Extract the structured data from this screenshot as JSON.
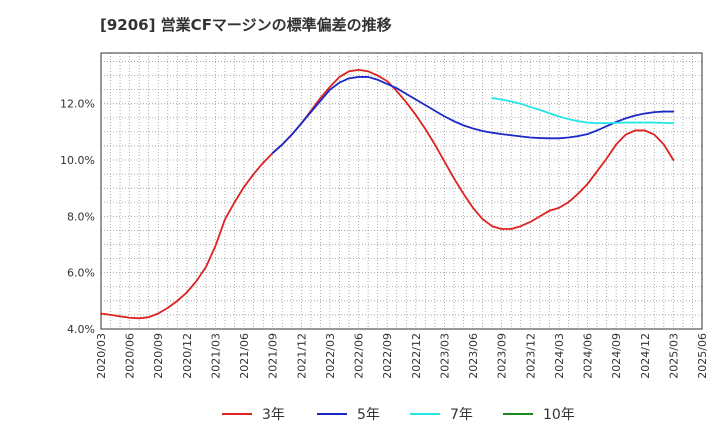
{
  "chart_data": {
    "type": "line",
    "title": "[9206]  営業CFマージンの標準偏差の推移",
    "xlabel": "",
    "ylabel": "",
    "x_ticks": [
      "2020/03",
      "2020/06",
      "2020/09",
      "2020/12",
      "2021/03",
      "2021/06",
      "2021/09",
      "2021/12",
      "2022/03",
      "2022/06",
      "2022/09",
      "2022/12",
      "2023/03",
      "2023/06",
      "2023/09",
      "2023/12",
      "2024/03",
      "2024/06",
      "2024/09",
      "2024/12",
      "2025/03",
      "2025/06"
    ],
    "y_ticks": [
      "4.0%",
      "6.0%",
      "8.0%",
      "10.0%",
      "12.0%"
    ],
    "ylim": [
      4.0,
      13.8
    ],
    "grid": true,
    "legend_position": "bottom",
    "series": [
      {
        "name": "3年",
        "color": "#dd2222",
        "points": [
          [
            "2020/03",
            4.55
          ],
          [
            "2020/04",
            4.5
          ],
          [
            "2020/05",
            4.45
          ],
          [
            "2020/06",
            4.4
          ],
          [
            "2020/07",
            4.38
          ],
          [
            "2020/08",
            4.42
          ],
          [
            "2020/09",
            4.55
          ],
          [
            "2020/10",
            4.75
          ],
          [
            "2020/11",
            5.0
          ],
          [
            "2020/12",
            5.3
          ],
          [
            "2021/01",
            5.7
          ],
          [
            "2021/02",
            6.2
          ],
          [
            "2021/03",
            6.95
          ],
          [
            "2021/04",
            7.9
          ],
          [
            "2021/05",
            8.5
          ],
          [
            "2021/06",
            9.05
          ],
          [
            "2021/07",
            9.5
          ],
          [
            "2021/08",
            9.9
          ],
          [
            "2021/09",
            10.25
          ],
          [
            "2021/10",
            10.55
          ],
          [
            "2021/11",
            10.9
          ],
          [
            "2021/12",
            11.3
          ],
          [
            "2022/01",
            11.75
          ],
          [
            "2022/02",
            12.2
          ],
          [
            "2022/03",
            12.6
          ],
          [
            "2022/04",
            12.95
          ],
          [
            "2022/05",
            13.15
          ],
          [
            "2022/06",
            13.2
          ],
          [
            "2022/07",
            13.15
          ],
          [
            "2022/08",
            13.0
          ],
          [
            "2022/09",
            12.8
          ],
          [
            "2022/10",
            12.45
          ],
          [
            "2022/11",
            12.05
          ],
          [
            "2022/12",
            11.6
          ],
          [
            "2023/01",
            11.1
          ],
          [
            "2023/02",
            10.55
          ],
          [
            "2023/03",
            9.95
          ],
          [
            "2023/04",
            9.35
          ],
          [
            "2023/05",
            8.8
          ],
          [
            "2023/06",
            8.3
          ],
          [
            "2023/07",
            7.9
          ],
          [
            "2023/08",
            7.65
          ],
          [
            "2023/09",
            7.55
          ],
          [
            "2023/10",
            7.55
          ],
          [
            "2023/11",
            7.65
          ],
          [
            "2023/12",
            7.8
          ],
          [
            "2024/01",
            8.0
          ],
          [
            "2024/02",
            8.2
          ],
          [
            "2024/03",
            8.3
          ],
          [
            "2024/04",
            8.5
          ],
          [
            "2024/05",
            8.8
          ],
          [
            "2024/06",
            9.15
          ],
          [
            "2024/07",
            9.6
          ],
          [
            "2024/08",
            10.05
          ],
          [
            "2024/09",
            10.55
          ],
          [
            "2024/10",
            10.9
          ],
          [
            "2024/11",
            11.05
          ],
          [
            "2024/12",
            11.05
          ],
          [
            "2025/01",
            10.9
          ],
          [
            "2025/02",
            10.55
          ],
          [
            "2025/03",
            10.0
          ]
        ]
      },
      {
        "name": "5年",
        "color": "#1a2ac8",
        "points": [
          [
            "2021/09",
            10.25
          ],
          [
            "2021/10",
            10.55
          ],
          [
            "2021/11",
            10.9
          ],
          [
            "2021/12",
            11.3
          ],
          [
            "2022/01",
            11.7
          ],
          [
            "2022/02",
            12.1
          ],
          [
            "2022/03",
            12.5
          ],
          [
            "2022/04",
            12.75
          ],
          [
            "2022/05",
            12.9
          ],
          [
            "2022/06",
            12.95
          ],
          [
            "2022/07",
            12.95
          ],
          [
            "2022/08",
            12.85
          ],
          [
            "2022/09",
            12.7
          ],
          [
            "2022/10",
            12.55
          ],
          [
            "2022/11",
            12.35
          ],
          [
            "2022/12",
            12.15
          ],
          [
            "2023/01",
            11.95
          ],
          [
            "2023/02",
            11.75
          ],
          [
            "2023/03",
            11.55
          ],
          [
            "2023/04",
            11.38
          ],
          [
            "2023/05",
            11.23
          ],
          [
            "2023/06",
            11.12
          ],
          [
            "2023/07",
            11.03
          ],
          [
            "2023/08",
            10.97
          ],
          [
            "2023/09",
            10.92
          ],
          [
            "2023/10",
            10.88
          ],
          [
            "2023/11",
            10.84
          ],
          [
            "2023/12",
            10.8
          ],
          [
            "2024/01",
            10.78
          ],
          [
            "2024/02",
            10.77
          ],
          [
            "2024/03",
            10.77
          ],
          [
            "2024/04",
            10.8
          ],
          [
            "2024/05",
            10.85
          ],
          [
            "2024/06",
            10.92
          ],
          [
            "2024/07",
            11.05
          ],
          [
            "2024/08",
            11.2
          ],
          [
            "2024/09",
            11.35
          ],
          [
            "2024/10",
            11.48
          ],
          [
            "2024/11",
            11.58
          ],
          [
            "2024/12",
            11.65
          ],
          [
            "2025/01",
            11.7
          ],
          [
            "2025/02",
            11.72
          ],
          [
            "2025/03",
            11.72
          ]
        ]
      },
      {
        "name": "7年",
        "color": "#22e6e6",
        "points": [
          [
            "2023/08",
            12.2
          ],
          [
            "2023/09",
            12.15
          ],
          [
            "2023/10",
            12.08
          ],
          [
            "2023/11",
            12.0
          ],
          [
            "2023/12",
            11.88
          ],
          [
            "2024/01",
            11.78
          ],
          [
            "2024/02",
            11.66
          ],
          [
            "2024/03",
            11.55
          ],
          [
            "2024/04",
            11.45
          ],
          [
            "2024/05",
            11.38
          ],
          [
            "2024/06",
            11.33
          ],
          [
            "2024/07",
            11.31
          ],
          [
            "2024/08",
            11.31
          ],
          [
            "2024/09",
            11.32
          ],
          [
            "2024/10",
            11.33
          ],
          [
            "2024/11",
            11.33
          ],
          [
            "2024/12",
            11.33
          ],
          [
            "2025/01",
            11.33
          ],
          [
            "2025/02",
            11.32
          ],
          [
            "2025/03",
            11.31
          ]
        ]
      },
      {
        "name": "10年",
        "color": "#1e8a1e",
        "points": []
      }
    ]
  }
}
